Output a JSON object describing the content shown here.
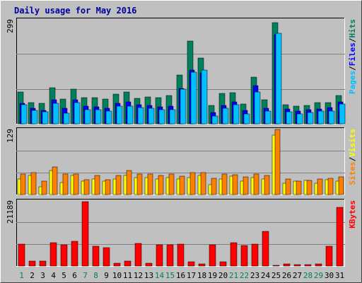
{
  "title": "Daily usage for May 2016",
  "colors": {
    "hits": "#00805c",
    "files": "#0000ff",
    "pages": "#00c0ff",
    "visits": "#ffff00",
    "sites": "#ff8000",
    "kbytes": "#ff0000",
    "weekend": "#00805c",
    "weekday": "#000000",
    "grid": "#808080",
    "plot_bg": "#c0c0c0"
  },
  "chart_data": [
    {
      "type": "bar",
      "panel": "top",
      "y_max_label": "299",
      "ylim": [
        0,
        299
      ],
      "legend": [
        "Pages",
        "/",
        "Files",
        "/",
        "Hits"
      ],
      "categories": [
        "1",
        "2",
        "3",
        "4",
        "5",
        "6",
        "7",
        "8",
        "9",
        "10",
        "11",
        "12",
        "13",
        "14",
        "15",
        "16",
        "17",
        "18",
        "19",
        "20",
        "21",
        "22",
        "23",
        "24",
        "25",
        "26",
        "27",
        "28",
        "29",
        "30",
        "31"
      ],
      "weekend_days": [
        "1",
        "7",
        "8",
        "14",
        "15",
        "21",
        "22",
        "28",
        "29"
      ],
      "series": [
        {
          "name": "Hits",
          "values": [
            91,
            62,
            58,
            104,
            71,
            100,
            76,
            75,
            71,
            85,
            91,
            74,
            77,
            76,
            81,
            141,
            237,
            190,
            52,
            87,
            89,
            56,
            134,
            70,
            291,
            54,
            50,
            52,
            62,
            61,
            82
          ]
        },
        {
          "name": "Files",
          "values": [
            60,
            45,
            39,
            70,
            45,
            70,
            51,
            49,
            45,
            60,
            63,
            55,
            52,
            48,
            51,
            101,
            155,
            146,
            32,
            53,
            63,
            39,
            110,
            44,
            257,
            43,
            37,
            40,
            42,
            47,
            63
          ]
        },
        {
          "name": "Pages",
          "values": [
            55,
            38,
            35,
            60,
            30,
            62,
            40,
            40,
            37,
            50,
            50,
            47,
            45,
            40,
            41,
            99,
            149,
            154,
            23,
            44,
            54,
            29,
            91,
            37,
            261,
            34,
            29,
            33,
            36,
            36,
            57
          ]
        }
      ]
    },
    {
      "type": "bar",
      "panel": "middle",
      "y_max_label": "129",
      "ylim": [
        0,
        129
      ],
      "legend": [
        "Sites",
        "/",
        "Visits"
      ],
      "categories": [
        "1",
        "2",
        "3",
        "4",
        "5",
        "6",
        "7",
        "8",
        "9",
        "10",
        "11",
        "12",
        "13",
        "14",
        "15",
        "16",
        "17",
        "18",
        "19",
        "20",
        "21",
        "22",
        "23",
        "24",
        "25",
        "26",
        "27",
        "28",
        "29",
        "30",
        "31"
      ],
      "series": [
        {
          "name": "Visits",
          "values": [
            31,
            38,
            16,
            48,
            24,
            38,
            27,
            31,
            27,
            31,
            38,
            33,
            33,
            31,
            33,
            31,
            33,
            38,
            20,
            31,
            36,
            27,
            33,
            31,
            118,
            22,
            27,
            28,
            23,
            29,
            27
          ]
        },
        {
          "name": "Sites",
          "values": [
            41,
            43,
            27,
            54,
            40,
            41,
            29,
            38,
            29,
            38,
            47,
            41,
            40,
            38,
            41,
            36,
            43,
            44,
            32,
            40,
            39,
            35,
            40,
            38,
            129,
            31,
            27,
            28,
            31,
            32,
            35
          ]
        }
      ]
    },
    {
      "type": "bar",
      "panel": "bottom",
      "y_max_label": "21189",
      "ylim": [
        0,
        21189
      ],
      "legend": [
        "KBytes"
      ],
      "categories": [
        "1",
        "2",
        "3",
        "4",
        "5",
        "6",
        "7",
        "8",
        "9",
        "10",
        "11",
        "12",
        "13",
        "14",
        "15",
        "16",
        "17",
        "18",
        "19",
        "20",
        "21",
        "22",
        "23",
        "24",
        "25",
        "26",
        "27",
        "28",
        "29",
        "30",
        "31"
      ],
      "series": [
        {
          "name": "KBytes",
          "values": [
            7100,
            1500,
            1500,
            7600,
            6800,
            8000,
            21000,
            6400,
            6100,
            1000,
            1500,
            7300,
            1000,
            7000,
            7000,
            7100,
            1300,
            800,
            7000,
            1300,
            7700,
            6600,
            7200,
            11300,
            300,
            600,
            550,
            550,
            700,
            6400,
            19100
          ]
        }
      ]
    }
  ]
}
